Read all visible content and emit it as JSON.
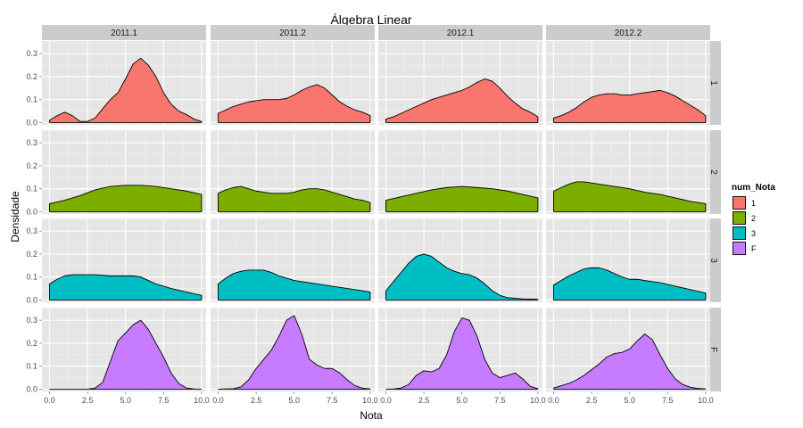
{
  "chart_data": {
    "type": "area",
    "title": "Álgebra Linear",
    "xlabel": "Nota",
    "ylabel": "Densidade",
    "xlim": [
      -0.5,
      10.3
    ],
    "ylim": [
      -0.01,
      0.355
    ],
    "x_ticks": [
      0.0,
      2.5,
      5.0,
      7.5,
      10.0
    ],
    "x_tick_labels": [
      "0.0",
      "2.5",
      "5.0",
      "7.5",
      "10.0"
    ],
    "y_ticks": [
      0.0,
      0.1,
      0.2,
      0.3
    ],
    "y_tick_labels": [
      "0.0",
      "0.1",
      "0.2",
      "0.3"
    ],
    "grid": true,
    "facet_columns": [
      "2011.1",
      "2011.2",
      "2012.1",
      "2012.2"
    ],
    "facet_rows": [
      "1",
      "2",
      "3",
      "F"
    ],
    "legend": {
      "title": "num_Nota",
      "placement": "right",
      "entries": [
        {
          "label": "1",
          "color": "#F8766D"
        },
        {
          "label": "2",
          "color": "#7CAE00"
        },
        {
          "label": "3",
          "color": "#00BFC4"
        },
        {
          "label": "F",
          "color": "#C77CFF"
        }
      ]
    },
    "panels": [
      [
        [
          [
            0,
            0.01
          ],
          [
            0.5,
            0.03
          ],
          [
            1.0,
            0.045
          ],
          [
            1.5,
            0.03
          ],
          [
            2.0,
            0.005
          ],
          [
            2.5,
            0.005
          ],
          [
            3.0,
            0.02
          ],
          [
            3.5,
            0.06
          ],
          [
            4.0,
            0.1
          ],
          [
            4.5,
            0.13
          ],
          [
            5.0,
            0.19
          ],
          [
            5.5,
            0.255
          ],
          [
            6.0,
            0.28
          ],
          [
            6.5,
            0.25
          ],
          [
            7.0,
            0.2
          ],
          [
            7.5,
            0.13
          ],
          [
            8.0,
            0.08
          ],
          [
            8.5,
            0.05
          ],
          [
            9.0,
            0.035
          ],
          [
            9.5,
            0.015
          ],
          [
            10,
            0.005
          ]
        ],
        [
          [
            0,
            0.04
          ],
          [
            0.5,
            0.055
          ],
          [
            1.0,
            0.07
          ],
          [
            1.5,
            0.08
          ],
          [
            2.0,
            0.09
          ],
          [
            2.5,
            0.095
          ],
          [
            3.0,
            0.1
          ],
          [
            3.5,
            0.1
          ],
          [
            4.0,
            0.1
          ],
          [
            4.5,
            0.105
          ],
          [
            5.0,
            0.12
          ],
          [
            5.5,
            0.14
          ],
          [
            6.0,
            0.155
          ],
          [
            6.5,
            0.165
          ],
          [
            7.0,
            0.15
          ],
          [
            7.5,
            0.12
          ],
          [
            8.0,
            0.09
          ],
          [
            8.5,
            0.07
          ],
          [
            9.0,
            0.055
          ],
          [
            9.5,
            0.045
          ],
          [
            10,
            0.03
          ]
        ],
        [
          [
            0,
            0.015
          ],
          [
            0.5,
            0.025
          ],
          [
            1.0,
            0.04
          ],
          [
            1.5,
            0.055
          ],
          [
            2.0,
            0.07
          ],
          [
            2.5,
            0.085
          ],
          [
            3.0,
            0.1
          ],
          [
            3.5,
            0.11
          ],
          [
            4.0,
            0.12
          ],
          [
            4.5,
            0.13
          ],
          [
            5.0,
            0.14
          ],
          [
            5.5,
            0.155
          ],
          [
            6.0,
            0.175
          ],
          [
            6.5,
            0.19
          ],
          [
            7.0,
            0.18
          ],
          [
            7.5,
            0.15
          ],
          [
            8.0,
            0.115
          ],
          [
            8.5,
            0.085
          ],
          [
            9.0,
            0.06
          ],
          [
            9.5,
            0.045
          ],
          [
            10,
            0.025
          ]
        ],
        [
          [
            0,
            0.02
          ],
          [
            0.5,
            0.03
          ],
          [
            1.0,
            0.045
          ],
          [
            1.5,
            0.065
          ],
          [
            2.0,
            0.09
          ],
          [
            2.5,
            0.11
          ],
          [
            3.0,
            0.12
          ],
          [
            3.5,
            0.125
          ],
          [
            4.0,
            0.125
          ],
          [
            4.5,
            0.12
          ],
          [
            5.0,
            0.12
          ],
          [
            5.5,
            0.125
          ],
          [
            6.0,
            0.13
          ],
          [
            6.5,
            0.135
          ],
          [
            7.0,
            0.14
          ],
          [
            7.5,
            0.13
          ],
          [
            8.0,
            0.115
          ],
          [
            8.5,
            0.095
          ],
          [
            9.0,
            0.075
          ],
          [
            9.5,
            0.055
          ],
          [
            10,
            0.03
          ]
        ]
      ],
      [
        [
          [
            0,
            0.035
          ],
          [
            1,
            0.05
          ],
          [
            2,
            0.07
          ],
          [
            3,
            0.095
          ],
          [
            4,
            0.11
          ],
          [
            5,
            0.115
          ],
          [
            6,
            0.115
          ],
          [
            7,
            0.11
          ],
          [
            8,
            0.1
          ],
          [
            9,
            0.09
          ],
          [
            10,
            0.075
          ]
        ],
        [
          [
            0,
            0.08
          ],
          [
            0.5,
            0.095
          ],
          [
            1.0,
            0.105
          ],
          [
            1.5,
            0.11
          ],
          [
            2.0,
            0.1
          ],
          [
            2.5,
            0.09
          ],
          [
            3.0,
            0.085
          ],
          [
            3.5,
            0.08
          ],
          [
            4.0,
            0.08
          ],
          [
            4.5,
            0.08
          ],
          [
            5.0,
            0.085
          ],
          [
            5.5,
            0.095
          ],
          [
            6.0,
            0.1
          ],
          [
            6.5,
            0.1
          ],
          [
            7.0,
            0.095
          ],
          [
            7.5,
            0.085
          ],
          [
            8.0,
            0.075
          ],
          [
            8.5,
            0.065
          ],
          [
            9.0,
            0.055
          ],
          [
            9.5,
            0.05
          ],
          [
            10,
            0.04
          ]
        ],
        [
          [
            0,
            0.05
          ],
          [
            1,
            0.065
          ],
          [
            2,
            0.08
          ],
          [
            3,
            0.095
          ],
          [
            4,
            0.105
          ],
          [
            5,
            0.11
          ],
          [
            6,
            0.105
          ],
          [
            7,
            0.1
          ],
          [
            8,
            0.09
          ],
          [
            9,
            0.075
          ],
          [
            10,
            0.06
          ]
        ],
        [
          [
            0,
            0.09
          ],
          [
            0.5,
            0.105
          ],
          [
            1.0,
            0.12
          ],
          [
            1.5,
            0.13
          ],
          [
            2.0,
            0.13
          ],
          [
            2.5,
            0.125
          ],
          [
            3.0,
            0.12
          ],
          [
            4.0,
            0.11
          ],
          [
            5.0,
            0.1
          ],
          [
            6.0,
            0.085
          ],
          [
            7.0,
            0.075
          ],
          [
            8.0,
            0.06
          ],
          [
            9.0,
            0.045
          ],
          [
            10,
            0.035
          ]
        ]
      ],
      [
        [
          [
            0,
            0.07
          ],
          [
            0.5,
            0.09
          ],
          [
            1.0,
            0.105
          ],
          [
            1.5,
            0.11
          ],
          [
            2.0,
            0.11
          ],
          [
            3.0,
            0.11
          ],
          [
            4.0,
            0.105
          ],
          [
            4.5,
            0.105
          ],
          [
            5.0,
            0.105
          ],
          [
            5.5,
            0.105
          ],
          [
            6.0,
            0.1
          ],
          [
            6.5,
            0.085
          ],
          [
            7.0,
            0.07
          ],
          [
            7.5,
            0.06
          ],
          [
            8.0,
            0.05
          ],
          [
            9.0,
            0.035
          ],
          [
            10,
            0.02
          ]
        ],
        [
          [
            0,
            0.07
          ],
          [
            0.5,
            0.095
          ],
          [
            1.0,
            0.115
          ],
          [
            1.5,
            0.125
          ],
          [
            2.0,
            0.13
          ],
          [
            2.5,
            0.13
          ],
          [
            3.0,
            0.13
          ],
          [
            3.5,
            0.12
          ],
          [
            4.0,
            0.105
          ],
          [
            4.5,
            0.095
          ],
          [
            5.0,
            0.085
          ],
          [
            6.0,
            0.075
          ],
          [
            7.0,
            0.065
          ],
          [
            8.0,
            0.055
          ],
          [
            9.0,
            0.045
          ],
          [
            10,
            0.035
          ]
        ],
        [
          [
            0,
            0.04
          ],
          [
            0.5,
            0.08
          ],
          [
            1.0,
            0.12
          ],
          [
            1.5,
            0.16
          ],
          [
            2.0,
            0.19
          ],
          [
            2.5,
            0.2
          ],
          [
            3.0,
            0.19
          ],
          [
            3.5,
            0.165
          ],
          [
            4.0,
            0.14
          ],
          [
            4.5,
            0.125
          ],
          [
            5.0,
            0.115
          ],
          [
            5.5,
            0.11
          ],
          [
            6.0,
            0.095
          ],
          [
            6.5,
            0.07
          ],
          [
            7.0,
            0.04
          ],
          [
            7.5,
            0.02
          ],
          [
            8.0,
            0.01
          ],
          [
            9.0,
            0.005
          ],
          [
            10,
            0.003
          ]
        ],
        [
          [
            0,
            0.065
          ],
          [
            0.5,
            0.085
          ],
          [
            1.0,
            0.105
          ],
          [
            1.5,
            0.12
          ],
          [
            2.0,
            0.135
          ],
          [
            2.5,
            0.14
          ],
          [
            3.0,
            0.14
          ],
          [
            3.5,
            0.13
          ],
          [
            4.0,
            0.115
          ],
          [
            4.5,
            0.1
          ],
          [
            5.0,
            0.09
          ],
          [
            5.5,
            0.09
          ],
          [
            6.0,
            0.085
          ],
          [
            7.0,
            0.075
          ],
          [
            8.0,
            0.06
          ],
          [
            9.0,
            0.045
          ],
          [
            10,
            0.03
          ]
        ]
      ],
      [
        [
          [
            0,
            0
          ],
          [
            2.5,
            0
          ],
          [
            3.0,
            0.005
          ],
          [
            3.5,
            0.03
          ],
          [
            4.0,
            0.12
          ],
          [
            4.5,
            0.21
          ],
          [
            5.0,
            0.245
          ],
          [
            5.5,
            0.28
          ],
          [
            6.0,
            0.3
          ],
          [
            6.5,
            0.26
          ],
          [
            7.0,
            0.2
          ],
          [
            7.5,
            0.14
          ],
          [
            8.0,
            0.07
          ],
          [
            8.5,
            0.025
          ],
          [
            9.0,
            0.005
          ],
          [
            9.5,
            0.001
          ],
          [
            10,
            0
          ]
        ],
        [
          [
            0,
            0
          ],
          [
            1.0,
            0.002
          ],
          [
            1.5,
            0.01
          ],
          [
            2.0,
            0.04
          ],
          [
            2.5,
            0.09
          ],
          [
            3.0,
            0.13
          ],
          [
            3.5,
            0.17
          ],
          [
            4.0,
            0.23
          ],
          [
            4.5,
            0.3
          ],
          [
            5.0,
            0.32
          ],
          [
            5.5,
            0.24
          ],
          [
            6.0,
            0.13
          ],
          [
            6.5,
            0.105
          ],
          [
            7.0,
            0.09
          ],
          [
            7.5,
            0.09
          ],
          [
            8.0,
            0.07
          ],
          [
            8.5,
            0.04
          ],
          [
            9.0,
            0.015
          ],
          [
            9.5,
            0.004
          ],
          [
            10,
            0.001
          ]
        ],
        [
          [
            0,
            0
          ],
          [
            0.5,
            0.001
          ],
          [
            1.0,
            0.005
          ],
          [
            1.5,
            0.02
          ],
          [
            2.0,
            0.06
          ],
          [
            2.5,
            0.08
          ],
          [
            3.0,
            0.075
          ],
          [
            3.5,
            0.09
          ],
          [
            4.0,
            0.15
          ],
          [
            4.5,
            0.25
          ],
          [
            5.0,
            0.31
          ],
          [
            5.5,
            0.3
          ],
          [
            6.0,
            0.23
          ],
          [
            6.5,
            0.13
          ],
          [
            7.0,
            0.07
          ],
          [
            7.5,
            0.05
          ],
          [
            8.0,
            0.06
          ],
          [
            8.5,
            0.07
          ],
          [
            9.0,
            0.045
          ],
          [
            9.5,
            0.012
          ],
          [
            10,
            0.002
          ]
        ],
        [
          [
            0,
            0.005
          ],
          [
            0.5,
            0.015
          ],
          [
            1.0,
            0.025
          ],
          [
            1.5,
            0.04
          ],
          [
            2.0,
            0.06
          ],
          [
            2.5,
            0.085
          ],
          [
            3.0,
            0.11
          ],
          [
            3.5,
            0.14
          ],
          [
            4.0,
            0.155
          ],
          [
            4.5,
            0.16
          ],
          [
            5.0,
            0.175
          ],
          [
            5.5,
            0.21
          ],
          [
            6.0,
            0.24
          ],
          [
            6.5,
            0.215
          ],
          [
            7.0,
            0.15
          ],
          [
            7.5,
            0.09
          ],
          [
            8.0,
            0.045
          ],
          [
            8.5,
            0.02
          ],
          [
            9.0,
            0.008
          ],
          [
            9.5,
            0.003
          ],
          [
            10,
            0.001
          ]
        ]
      ]
    ]
  }
}
